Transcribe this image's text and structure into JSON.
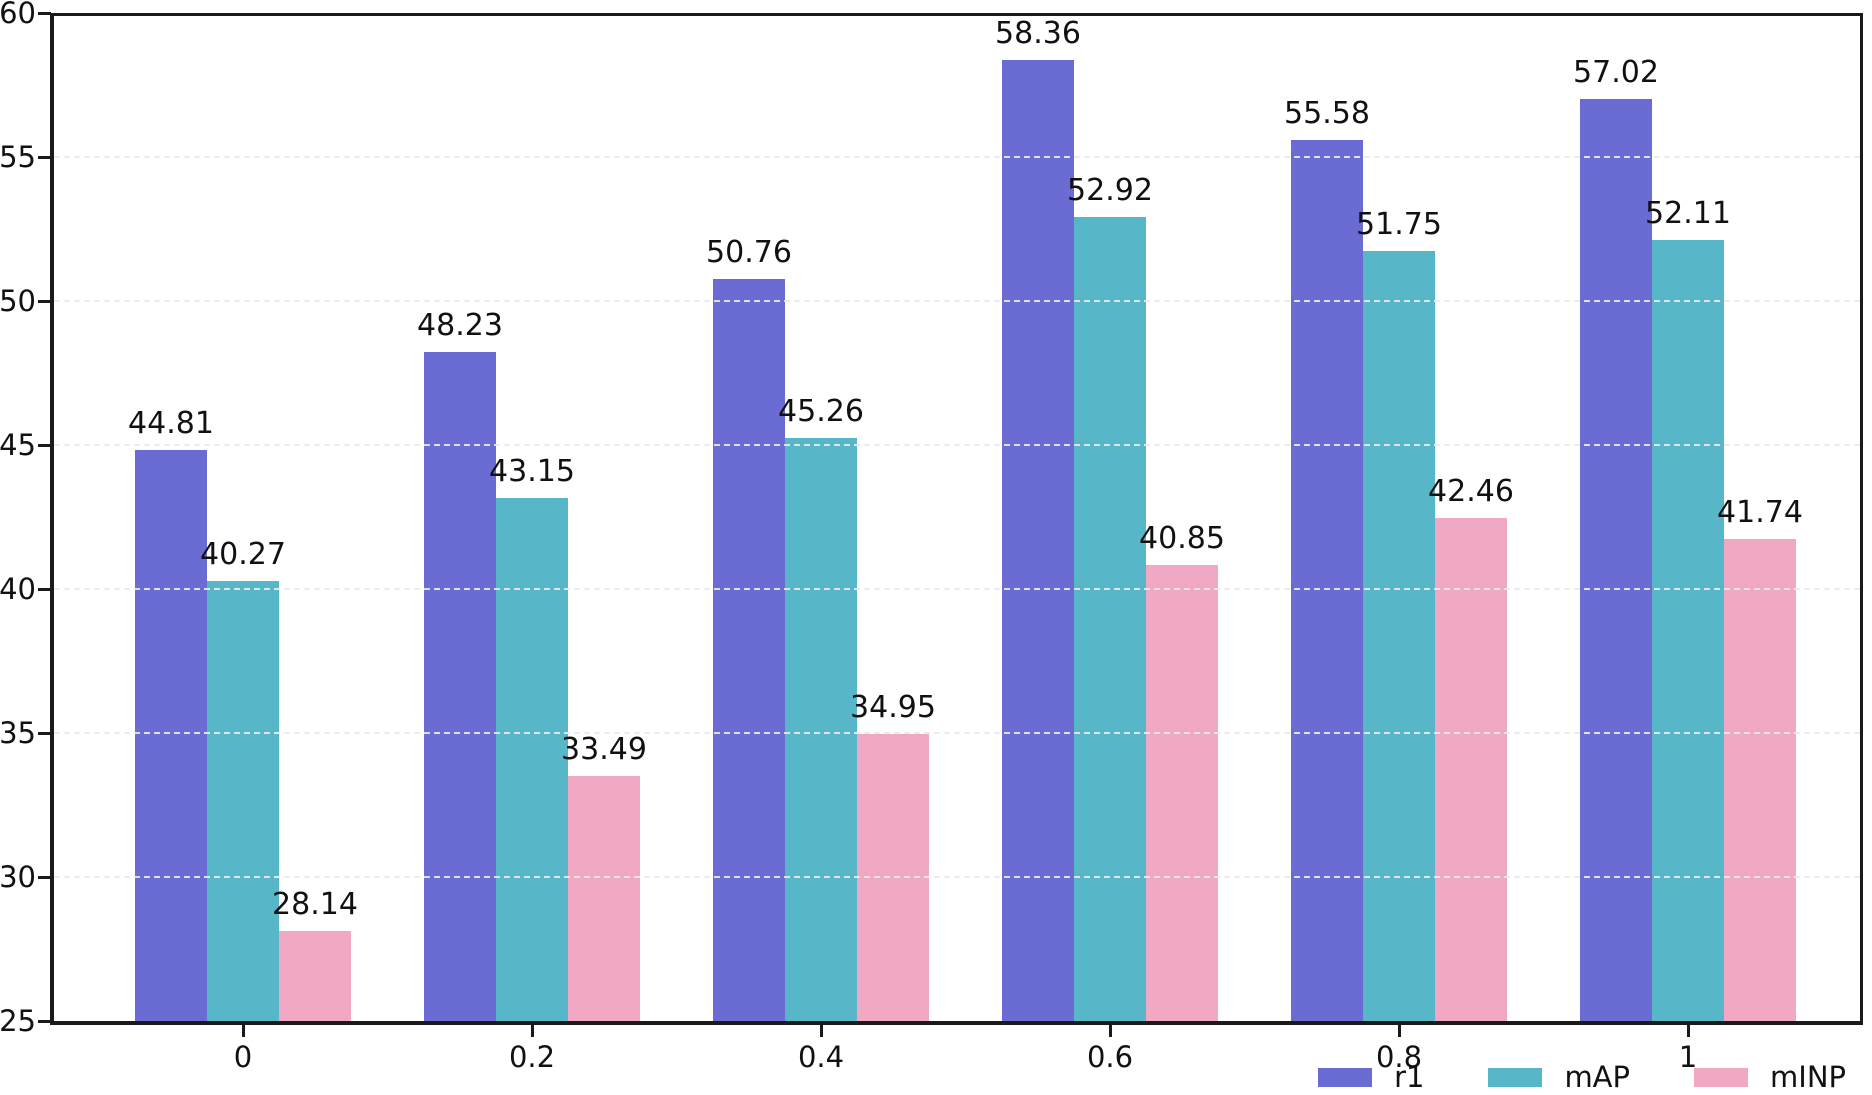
{
  "chart_data": {
    "type": "bar",
    "title": "",
    "xlabel": "",
    "ylabel": "",
    "categories": [
      "0",
      "0.2",
      "0.4",
      "0.6",
      "0.8",
      "1"
    ],
    "series": [
      {
        "name": "r1",
        "color": "#6B6CD3",
        "values": [
          44.81,
          48.23,
          50.76,
          58.36,
          55.58,
          57.02
        ]
      },
      {
        "name": "mAP",
        "color": "#58B6C9",
        "values": [
          40.27,
          43.15,
          45.26,
          52.92,
          51.75,
          52.11
        ]
      },
      {
        "name": "mINP",
        "color": "#F1A8C5",
        "values": [
          28.14,
          33.49,
          34.95,
          40.85,
          42.46,
          41.74
        ]
      }
    ],
    "ylim": [
      25,
      60
    ],
    "yticks": [
      25,
      30,
      35,
      40,
      45,
      50,
      55,
      60
    ],
    "gridlines_at": [
      30,
      35,
      40,
      45,
      50,
      55
    ],
    "grid": "horizontal-dashed",
    "legend_position": "bottom-right",
    "bar_value_labels": true,
    "value_label_decimals": 2
  },
  "style": {
    "axis_color": "#1a1a1a",
    "grid_color": "#eaeaea",
    "text_color": "#111111"
  }
}
